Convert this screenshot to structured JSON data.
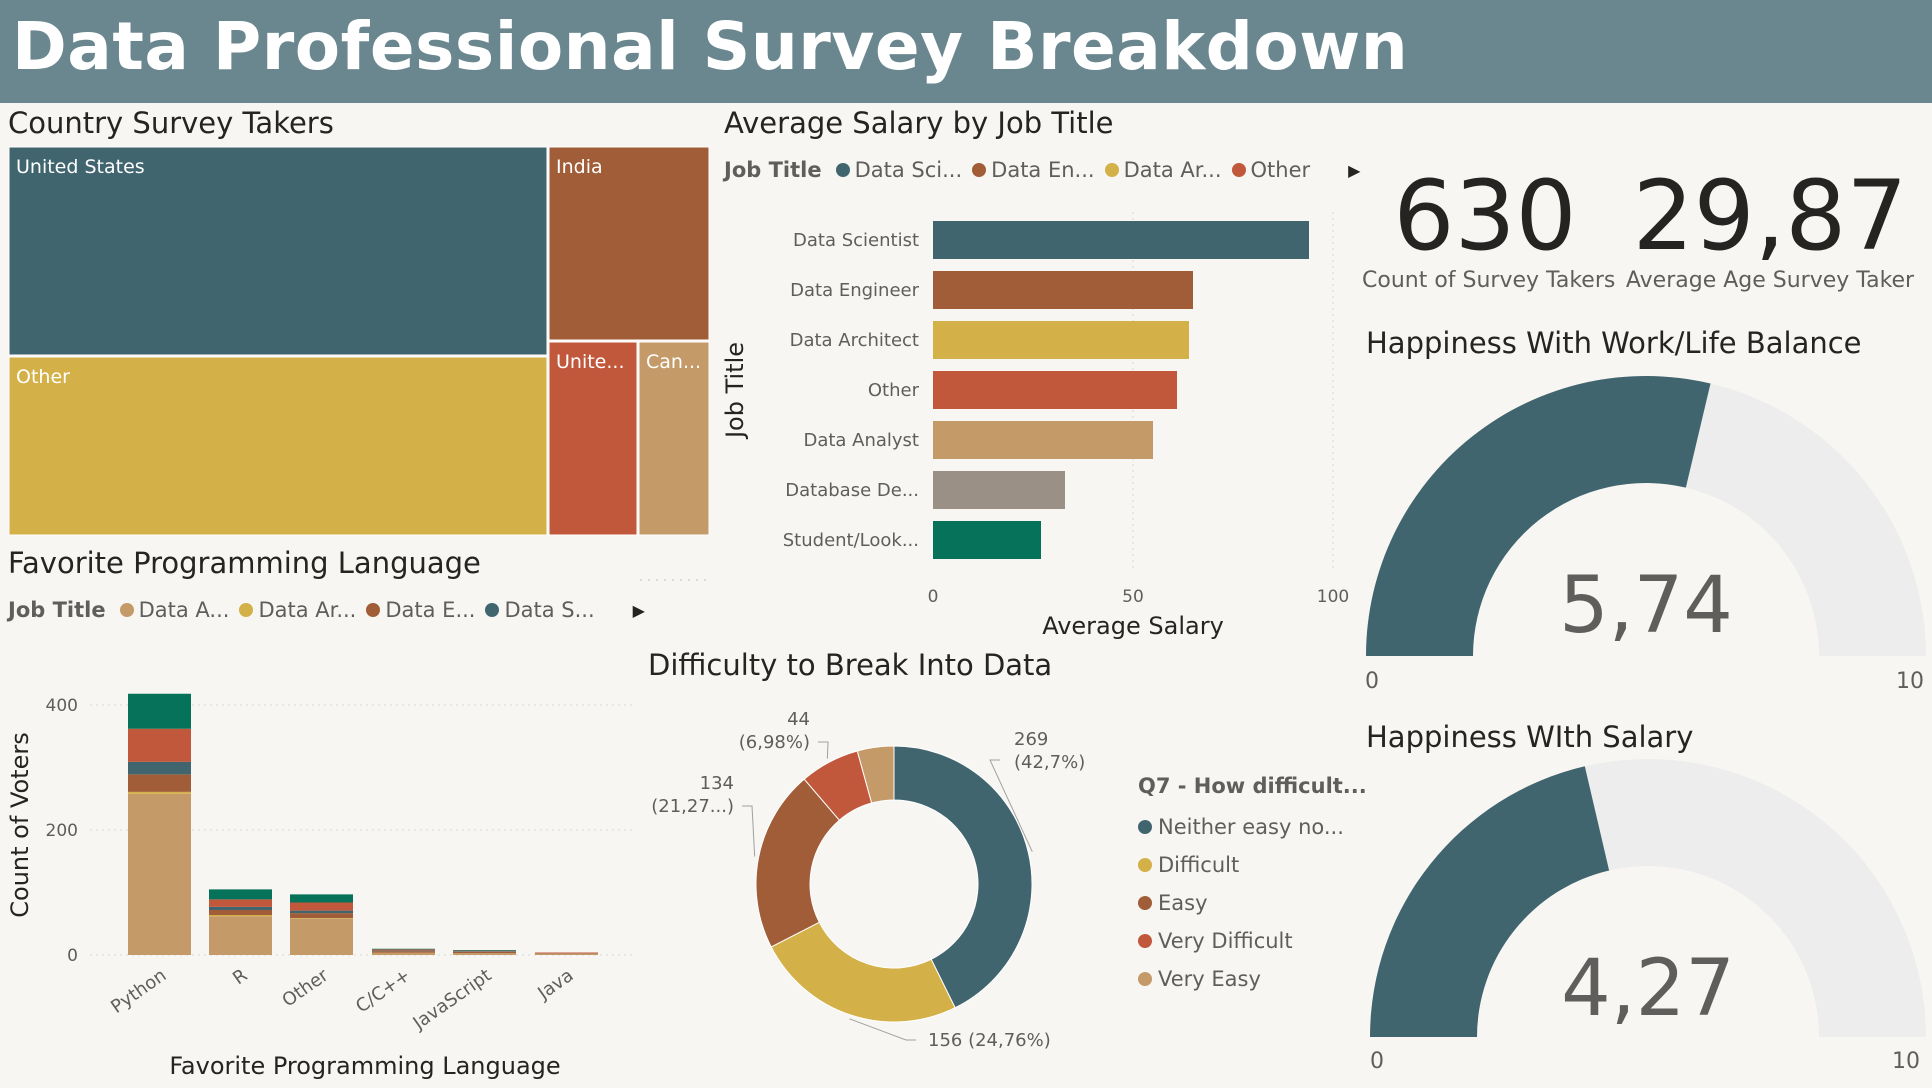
{
  "header": {
    "title": "Data Professional Survey Breakdown"
  },
  "colors": {
    "teal": "#41656f",
    "rust": "#a05d37",
    "gold": "#d4b048",
    "red": "#c1583c",
    "tan": "#c59a69",
    "gray": "#9b9085",
    "green": "#06725a",
    "gauge_track": "#ededed"
  },
  "kpis": [
    {
      "value": "630",
      "label": "Count of Survey Takers"
    },
    {
      "value": "29,87",
      "label": "Average Age Survey Taker"
    }
  ],
  "treemap": {
    "title": "Country Survey Takers",
    "cells": [
      {
        "label": "United States",
        "color": "#41656f"
      },
      {
        "label": "India",
        "color": "#a05d37"
      },
      {
        "label": "Other",
        "color": "#d4b048"
      },
      {
        "label": "Unite...",
        "color": "#c1583c"
      },
      {
        "label": "Can...",
        "color": "#c59a69"
      }
    ]
  },
  "salary": {
    "title": "Average Salary by Job Title",
    "legend": {
      "title": "Job Title",
      "items": [
        {
          "label": "Data Sci...",
          "color": "#41656f"
        },
        {
          "label": "Data En...",
          "color": "#a05d37"
        },
        {
          "label": "Data Ar...",
          "color": "#d4b048"
        },
        {
          "label": "Other",
          "color": "#c1583c"
        }
      ]
    }
  },
  "languages": {
    "title": "Favorite Programming Language",
    "legend": {
      "title": "Job Title",
      "items": [
        {
          "label": "Data A...",
          "color": "#c59a69"
        },
        {
          "label": "Data Ar...",
          "color": "#d4b048"
        },
        {
          "label": "Data E...",
          "color": "#a05d37"
        },
        {
          "label": "Data S...",
          "color": "#41656f"
        }
      ]
    }
  },
  "difficulty": {
    "title": "Difficulty to Break Into Data",
    "legend": {
      "title": "Q7 - How difficult...",
      "items": [
        {
          "label": "Neither easy no...",
          "color": "#41656f"
        },
        {
          "label": "Difficult",
          "color": "#d4b048"
        },
        {
          "label": "Easy",
          "color": "#a05d37"
        },
        {
          "label": "Very Difficult",
          "color": "#c1583c"
        },
        {
          "label": "Very Easy",
          "color": "#c59a69"
        }
      ]
    }
  },
  "gauges": [
    {
      "title": "Happiness With Work/Life Balance"
    },
    {
      "title": "Happiness WIth Salary"
    }
  ],
  "chart_data": [
    {
      "type": "treemap",
      "title": "Country Survey Takers",
      "categories": [
        "United States",
        "India",
        "Other",
        "Unite...",
        "Can..."
      ]
    },
    {
      "type": "bar",
      "orientation": "horizontal",
      "title": "Average Salary by Job Title",
      "xlabel": "Average Salary",
      "ylabel": "Job Title",
      "categories": [
        "Data Scientist",
        "Data Engineer",
        "Data Architect",
        "Other",
        "Data Analyst",
        "Database De...",
        "Student/Look..."
      ],
      "values": [
        94,
        65,
        64,
        61,
        55,
        33,
        27
      ],
      "colors": [
        "#41656f",
        "#a05d37",
        "#d4b048",
        "#c1583c",
        "#c59a69",
        "#9b9085",
        "#06725a"
      ],
      "xlim": [
        0,
        100
      ],
      "xticks": [
        "0",
        "50",
        "100"
      ]
    },
    {
      "type": "bar",
      "stacked": true,
      "title": "Favorite Programming Language",
      "xlabel": "Favorite Programming Language",
      "ylabel": "Count of Voters",
      "categories": [
        "Python",
        "R",
        "Other",
        "C/C++",
        "JavaScript",
        "Java"
      ],
      "ylim": [
        0,
        420
      ],
      "yticks": [
        "0",
        "200",
        "400"
      ],
      "series": [
        {
          "name": "Data A...",
          "color": "#c59a69",
          "values": [
            258,
            62,
            58,
            4,
            3,
            2
          ]
        },
        {
          "name": "Data Ar...",
          "color": "#d4b048",
          "values": [
            3,
            2,
            1,
            0,
            0,
            0
          ]
        },
        {
          "name": "Data E...",
          "color": "#a05d37",
          "values": [
            28,
            8,
            8,
            2,
            2,
            1
          ]
        },
        {
          "name": "Data S...",
          "color": "#41656f",
          "values": [
            20,
            5,
            4,
            1,
            1,
            0
          ]
        },
        {
          "color": "#c1583c",
          "values": [
            53,
            12,
            13,
            2,
            1,
            1
          ]
        },
        {
          "color": "#06725a",
          "values": [
            56,
            16,
            13,
            1,
            1,
            0
          ]
        }
      ]
    },
    {
      "type": "pie",
      "donut": true,
      "title": "Difficulty to Break Into Data",
      "categories": [
        "Neither easy no...",
        "Difficult",
        "Easy",
        "Very Difficult",
        "Very Easy"
      ],
      "values": [
        269,
        156,
        134,
        44,
        27
      ],
      "colors": [
        "#41656f",
        "#d4b048",
        "#a05d37",
        "#c1583c",
        "#c59a69"
      ],
      "labels": [
        {
          "lines": [
            "269",
            "(42,7%)"
          ]
        },
        {
          "lines": [
            "156 (24,76%)"
          ]
        },
        {
          "lines": [
            "134",
            "(21,27...)"
          ]
        },
        {
          "lines": [
            "44",
            "(6,98%)"
          ]
        }
      ]
    },
    {
      "type": "gauge",
      "title": "Happiness With Work/Life Balance",
      "value": 5.74,
      "value_label": "5,74",
      "min": 0,
      "max": 10,
      "min_label": "0",
      "max_label": "10"
    },
    {
      "type": "gauge",
      "title": "Happiness WIth Salary",
      "value": 4.27,
      "value_label": "4,27",
      "min": 0,
      "max": 10,
      "min_label": "0",
      "max_label": "10"
    }
  ]
}
